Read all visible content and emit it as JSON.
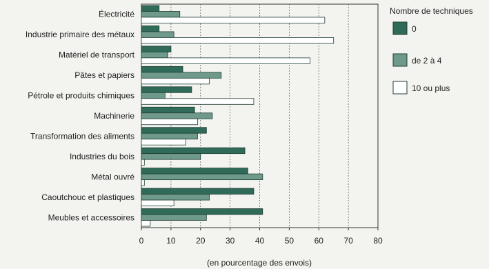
{
  "chart_data": {
    "type": "bar",
    "orientation": "horizontal",
    "categories": [
      "Électricité",
      "Industrie primaire des métaux",
      "Matériel de transport",
      "Pâtes et papiers",
      "Pétrole et produits chimiques",
      "Machinerie",
      "Transformation des aliments",
      "Industries du bois",
      "Métal ouvré",
      "Caoutchouc et plastiques",
      "Meubles et accessoires"
    ],
    "series": [
      {
        "name": "0",
        "color": "#2f6b58",
        "values": [
          6,
          6,
          10,
          14,
          17,
          18,
          22,
          35,
          36,
          38,
          41
        ]
      },
      {
        "name": "de 2 à 4",
        "color": "#6f9a8b",
        "values": [
          13,
          11,
          9,
          27,
          8,
          24,
          19,
          20,
          41,
          23,
          22
        ]
      },
      {
        "name": "10 ou plus",
        "color": "#ffffff",
        "values": [
          62,
          65,
          57,
          23,
          38,
          19,
          15,
          1,
          1,
          11,
          3
        ]
      }
    ],
    "xlim": [
      0,
      80
    ],
    "xticks": [
      0,
      10,
      20,
      30,
      40,
      50,
      60,
      70,
      80
    ],
    "xlabel": "(en pourcentage des envois)",
    "legend_title": "Nombre de techniques",
    "legend_placement": "right",
    "grid": "vertical dashed"
  }
}
